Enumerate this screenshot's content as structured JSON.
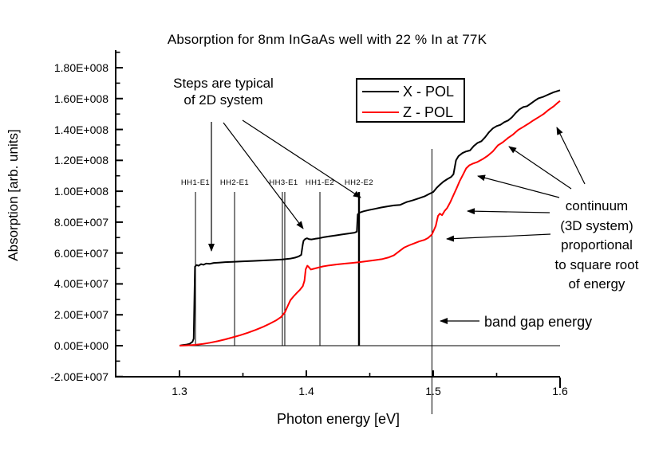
{
  "chart_data": {
    "type": "line",
    "title": "Absorption for 8nm InGaAs well with 22 % In at 77K",
    "xlabel": "Photon energy [eV]",
    "ylabel": "Absorption [arb. units]",
    "grid": false,
    "x_axis": {
      "min": 1.249,
      "max": 1.6,
      "major_ticks": [
        1.3,
        1.4,
        1.5,
        1.6
      ],
      "tick_labels": [
        "1.3",
        "1.4",
        "1.5",
        "1.6"
      ],
      "minor_ticks": [
        1.35,
        1.45,
        1.55
      ]
    },
    "y_axis": {
      "min": -22000000.0,
      "max": 191000000.0,
      "major_ticks": [
        180000000.0,
        160000000.0,
        140000000.0,
        120000000.0,
        100000000.0,
        80000000.0,
        60000000.0,
        40000000.0,
        20000000.0,
        0,
        -20000000.0
      ],
      "tick_labels": [
        "1.80E+008",
        "1.60E+008",
        "1.40E+008",
        "1.20E+008",
        "1.00E+008",
        "8.00E+007",
        "6.00E+007",
        "4.00E+007",
        "2.00E+007",
        "0.00E+000",
        "-2.00E+007"
      ],
      "minor_ticks": [
        190000000.0,
        170000000.0,
        150000000.0,
        130000000.0,
        110000000.0,
        90000000.0,
        70000000.0,
        50000000.0,
        30000000.0,
        10000000.0,
        -10000000.0
      ]
    },
    "legend": {
      "position": "top-center-inside",
      "entries": [
        {
          "label": "X - POL",
          "color": "#000000"
        },
        {
          "label": "Z - POL",
          "color": "#ff0000"
        }
      ]
    },
    "zero_line": {
      "value": 0,
      "x_start": 1.301,
      "x_end": 1.6
    },
    "transitions": [
      {
        "label": "HH1-E1",
        "energies": [
          1.3126
        ]
      },
      {
        "label": "HH2-E1",
        "energies": [
          1.3434
        ]
      },
      {
        "label": "HH3-E1",
        "energies": [
          1.3811,
          1.383
        ]
      },
      {
        "label": "HH1-E2",
        "energies": [
          1.4107
        ]
      },
      {
        "label": "HH2-E2",
        "energies": [
          1.4415
        ],
        "thick": true
      }
    ],
    "band_gap": {
      "label": "band gap energy",
      "energy": 1.499
    },
    "annotations": {
      "steps_note": "Steps are typical\nof 2D system",
      "continuum_note": "continuum\n(3D system)\nproportional\nto square root\nof energy",
      "band_gap_note": "band gap energy"
    },
    "arrows": [
      {
        "name": "steps-to-first-plateau",
        "from": [
          265,
          153
        ],
        "to": [
          265,
          315
        ]
      },
      {
        "name": "steps-to-hh3-step",
        "from": [
          280,
          154
        ],
        "to": [
          380,
          287
        ]
      },
      {
        "name": "steps-to-hh2e2-step",
        "from": [
          304,
          151
        ],
        "to": [
          452,
          248
        ]
      },
      {
        "name": "continuum-arrow-1",
        "from": [
          733,
          231
        ],
        "to": [
          698,
          160
        ]
      },
      {
        "name": "continuum-arrow-2",
        "from": [
          716,
          237
        ],
        "to": [
          638,
          184
        ]
      },
      {
        "name": "continuum-arrow-3",
        "from": [
          701,
          248
        ],
        "to": [
          599,
          221
        ]
      },
      {
        "name": "continuum-arrow-4",
        "from": [
          689,
          267
        ],
        "to": [
          586,
          265
        ]
      },
      {
        "name": "continuum-arrow-5",
        "from": [
          690,
          294
        ],
        "to": [
          560,
          300
        ]
      },
      {
        "name": "band-gap-arrow",
        "from": [
          601,
          403
        ],
        "to": [
          552,
          403
        ]
      }
    ],
    "series": [
      {
        "name": "X - POL",
        "color": "#000000",
        "points": [
          [
            1.3,
            0
          ],
          [
            1.302,
            300000.0
          ],
          [
            1.305,
            600000.0
          ],
          [
            1.308,
            1200000.0
          ],
          [
            1.3102,
            2500000.0
          ],
          [
            1.3112,
            4500000.0
          ],
          [
            1.3122,
            51200000.0
          ],
          [
            1.3135,
            52200000.0
          ],
          [
            1.315,
            51800000.0
          ],
          [
            1.317,
            52800000.0
          ],
          [
            1.319,
            52400000.0
          ],
          [
            1.321,
            53200000.0
          ],
          [
            1.324,
            53000000.0
          ],
          [
            1.327,
            53600000.0
          ],
          [
            1.331,
            53800000.0
          ],
          [
            1.336,
            54100000.0
          ],
          [
            1.342,
            54300000.0
          ],
          [
            1.35,
            54600000.0
          ],
          [
            1.358,
            54900000.0
          ],
          [
            1.366,
            55200000.0
          ],
          [
            1.374,
            55500000.0
          ],
          [
            1.381,
            55800000.0
          ],
          [
            1.387,
            56300000.0
          ],
          [
            1.391,
            57000000.0
          ],
          [
            1.394,
            57800000.0
          ],
          [
            1.396,
            58800000.0
          ],
          [
            1.3972,
            65500000.0
          ],
          [
            1.3978,
            68000000.0
          ],
          [
            1.399,
            69000000.0
          ],
          [
            1.4005,
            69600000.0
          ],
          [
            1.402,
            69000000.0
          ],
          [
            1.404,
            68800000.0
          ],
          [
            1.407,
            69200000.0
          ],
          [
            1.41,
            69600000.0
          ],
          [
            1.414,
            70300000.0
          ],
          [
            1.418,
            70800000.0
          ],
          [
            1.423,
            71400000.0
          ],
          [
            1.428,
            72000000.0
          ],
          [
            1.433,
            72600000.0
          ],
          [
            1.438,
            73200000.0
          ],
          [
            1.4398,
            73800000.0
          ],
          [
            1.4405,
            85000000.0
          ],
          [
            1.442,
            86200000.0
          ],
          [
            1.445,
            87000000.0
          ],
          [
            1.449,
            87800000.0
          ],
          [
            1.454,
            88600000.0
          ],
          [
            1.459,
            89500000.0
          ],
          [
            1.464,
            90200000.0
          ],
          [
            1.469,
            90800000.0
          ],
          [
            1.474,
            91200000.0
          ],
          [
            1.479,
            93000000.0
          ],
          [
            1.484,
            94200000.0
          ],
          [
            1.489,
            95500000.0
          ],
          [
            1.4935,
            96800000.0
          ],
          [
            1.497,
            98300000.0
          ],
          [
            1.5,
            99500000.0
          ],
          [
            1.5025,
            102000000.0
          ],
          [
            1.505,
            104000000.0
          ],
          [
            1.508,
            106200000.0
          ],
          [
            1.511,
            107800000.0
          ],
          [
            1.514,
            109200000.0
          ],
          [
            1.516,
            111000000.0
          ],
          [
            1.518,
            120000000.0
          ],
          [
            1.52,
            122800000.0
          ],
          [
            1.523,
            124700000.0
          ],
          [
            1.526,
            125800000.0
          ],
          [
            1.529,
            126400000.0
          ],
          [
            1.532,
            129300000.0
          ],
          [
            1.535,
            131300000.0
          ],
          [
            1.538,
            132400000.0
          ],
          [
            1.541,
            135000000.0
          ],
          [
            1.544,
            138300000.0
          ],
          [
            1.547,
            140700000.0
          ],
          [
            1.55,
            142200000.0
          ],
          [
            1.553,
            143000000.0
          ],
          [
            1.556,
            144700000.0
          ],
          [
            1.559,
            145800000.0
          ],
          [
            1.562,
            147800000.0
          ],
          [
            1.565,
            150600000.0
          ],
          [
            1.568,
            153000000.0
          ],
          [
            1.571,
            154500000.0
          ],
          [
            1.574,
            155100000.0
          ],
          [
            1.577,
            156800000.0
          ],
          [
            1.58,
            158600000.0
          ],
          [
            1.583,
            160200000.0
          ],
          [
            1.587,
            161200000.0
          ],
          [
            1.591,
            162700000.0
          ],
          [
            1.595,
            164100000.0
          ],
          [
            1.598,
            164900000.0
          ],
          [
            1.6,
            165400000.0
          ]
        ]
      },
      {
        "name": "Z - POL",
        "color": "#ff0000",
        "points": [
          [
            1.3,
            0
          ],
          [
            1.306,
            200000.0
          ],
          [
            1.312,
            500000.0
          ],
          [
            1.318,
            1100000.0
          ],
          [
            1.324,
            1900000.0
          ],
          [
            1.33,
            2900000.0
          ],
          [
            1.336,
            4100000.0
          ],
          [
            1.342,
            5400000.0
          ],
          [
            1.348,
            6800000.0
          ],
          [
            1.354,
            8400000.0
          ],
          [
            1.36,
            10200000.0
          ],
          [
            1.366,
            12200000.0
          ],
          [
            1.371,
            14200000.0
          ],
          [
            1.376,
            16300000.0
          ],
          [
            1.38,
            18500000.0
          ],
          [
            1.383,
            21500000.0
          ],
          [
            1.3855,
            26000000.0
          ],
          [
            1.3875,
            29500000.0
          ],
          [
            1.39,
            32000000.0
          ],
          [
            1.3925,
            34200000.0
          ],
          [
            1.395,
            36200000.0
          ],
          [
            1.3972,
            38500000.0
          ],
          [
            1.3985,
            42000000.0
          ],
          [
            1.3995,
            49500000.0
          ],
          [
            1.4008,
            51800000.0
          ],
          [
            1.402,
            50800000.0
          ],
          [
            1.4035,
            49300000.0
          ],
          [
            1.406,
            49800000.0
          ],
          [
            1.409,
            50500000.0
          ],
          [
            1.413,
            51300000.0
          ],
          [
            1.418,
            52000000.0
          ],
          [
            1.424,
            52600000.0
          ],
          [
            1.43,
            53100000.0
          ],
          [
            1.436,
            53600000.0
          ],
          [
            1.442,
            54100000.0
          ],
          [
            1.448,
            54700000.0
          ],
          [
            1.454,
            55400000.0
          ],
          [
            1.46,
            56100000.0
          ],
          [
            1.465,
            57200000.0
          ],
          [
            1.469,
            58500000.0
          ],
          [
            1.473,
            61000000.0
          ],
          [
            1.477,
            63500000.0
          ],
          [
            1.481,
            65000000.0
          ],
          [
            1.485,
            66200000.0
          ],
          [
            1.489,
            67500000.0
          ],
          [
            1.493,
            68500000.0
          ],
          [
            1.496,
            69800000.0
          ],
          [
            1.499,
            72000000.0
          ],
          [
            1.502,
            77500000.0
          ],
          [
            1.5038,
            84000000.0
          ],
          [
            1.5052,
            85500000.0
          ],
          [
            1.507,
            84500000.0
          ],
          [
            1.509,
            87200000.0
          ],
          [
            1.511,
            89200000.0
          ],
          [
            1.5135,
            93000000.0
          ],
          [
            1.516,
            97500000.0
          ],
          [
            1.5185,
            102000000.0
          ],
          [
            1.521,
            106800000.0
          ],
          [
            1.5235,
            110800000.0
          ],
          [
            1.526,
            114800000.0
          ],
          [
            1.5285,
            116800000.0
          ],
          [
            1.531,
            117800000.0
          ],
          [
            1.535,
            119000000.0
          ],
          [
            1.539,
            120800000.0
          ],
          [
            1.543,
            123000000.0
          ],
          [
            1.547,
            125800000.0
          ],
          [
            1.551,
            129700000.0
          ],
          [
            1.555,
            131800000.0
          ],
          [
            1.559,
            134500000.0
          ],
          [
            1.563,
            136800000.0
          ],
          [
            1.567,
            139700000.0
          ],
          [
            1.571,
            141700000.0
          ],
          [
            1.575,
            143700000.0
          ],
          [
            1.579,
            145900000.0
          ],
          [
            1.583,
            147900000.0
          ],
          [
            1.587,
            150000000.0
          ],
          [
            1.591,
            152700000.0
          ],
          [
            1.595,
            155000000.0
          ],
          [
            1.598,
            157200000.0
          ],
          [
            1.6,
            158500000.0
          ]
        ]
      }
    ]
  }
}
